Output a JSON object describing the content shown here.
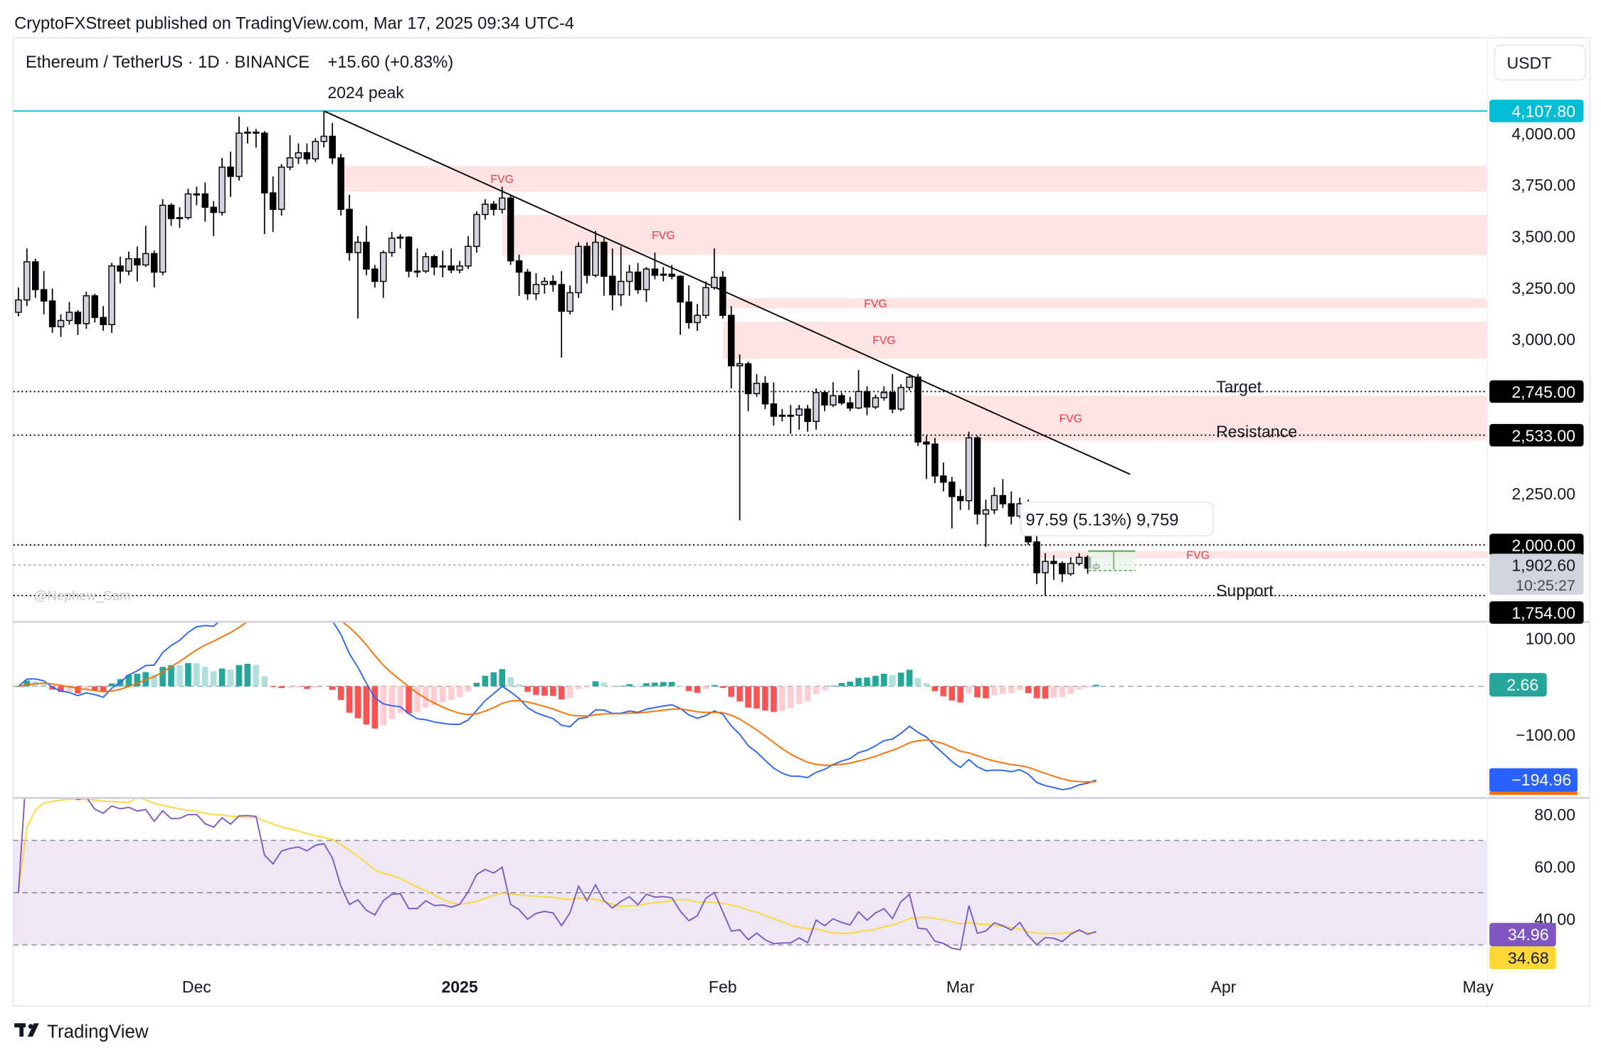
{
  "publish_line": "CryptoFXStreet published on TradingView.com, Mar 17, 2025 09:34 UTC-4",
  "legend": {
    "symbol": "Ethereum / TetherUS · 1D · BINANCE",
    "change": "+15.60 (+0.83%)"
  },
  "currency_button": "USDT",
  "watermark": "@Nephew_Sam",
  "footer_logo": "TradingView",
  "annotations": {
    "peak": "2024 peak",
    "target": "Target",
    "resistance": "Resistance",
    "support": "Support",
    "fvg": "FVG",
    "measure_tooltip": "97.59 (5.13%) 9,759"
  },
  "colors": {
    "up_fill": "#d1d4dc",
    "down_fill": "#000000",
    "fvg_zone": "#ffe4e4",
    "fvg_text": "#f23645",
    "peak_line": "#00bcd4",
    "macd": "#2962ff",
    "signal": "#ff6d00",
    "hist_up_strong": "#26a69a",
    "hist_up_weak": "#b2dfdb",
    "hist_down_strong": "#ff5252",
    "hist_down_weak": "#ffcdd2",
    "rsi": "#7e57c2",
    "rsi_ma": "#fdd835",
    "rsi_band": "#ede7f6"
  },
  "chart_data": [
    {
      "type": "candlestick",
      "title": "Ethereum / TetherUS · 1D · BINANCE",
      "start_date": "2024-11-10",
      "interval": "1D",
      "columns": [
        "open",
        "high",
        "low",
        "close"
      ],
      "ohlc": [
        [
          3130,
          3250,
          3110,
          3190
        ],
        [
          3190,
          3440,
          3160,
          3375
        ],
        [
          3375,
          3390,
          3200,
          3240
        ],
        [
          3240,
          3330,
          3120,
          3185
        ],
        [
          3185,
          3245,
          3030,
          3060
        ],
        [
          3060,
          3120,
          3010,
          3090
        ],
        [
          3090,
          3180,
          3070,
          3130
        ],
        [
          3130,
          3140,
          3020,
          3075
        ],
        [
          3075,
          3230,
          3050,
          3210
        ],
        [
          3210,
          3220,
          3080,
          3105
        ],
        [
          3105,
          3160,
          3040,
          3070
        ],
        [
          3070,
          3370,
          3030,
          3355
        ],
        [
          3355,
          3400,
          3270,
          3330
        ],
        [
          3330,
          3425,
          3310,
          3390
        ],
        [
          3390,
          3450,
          3280,
          3360
        ],
        [
          3360,
          3550,
          3350,
          3415
        ],
        [
          3415,
          3430,
          3250,
          3325
        ],
        [
          3325,
          3680,
          3310,
          3650
        ],
        [
          3650,
          3660,
          3550,
          3585
        ],
        [
          3585,
          3640,
          3540,
          3590
        ],
        [
          3590,
          3730,
          3580,
          3705
        ],
        [
          3705,
          3740,
          3650,
          3705
        ],
        [
          3705,
          3760,
          3570,
          3640
        ],
        [
          3640,
          3670,
          3500,
          3615
        ],
        [
          3615,
          3880,
          3600,
          3835
        ],
        [
          3835,
          3910,
          3690,
          3790
        ],
        [
          3790,
          4080,
          3770,
          4000
        ],
        [
          4000,
          4030,
          3950,
          4005
        ],
        [
          4005,
          4020,
          3930,
          4000
        ],
        [
          4000,
          4010,
          3510,
          3710
        ],
        [
          3710,
          3790,
          3520,
          3630
        ],
        [
          3630,
          3850,
          3600,
          3835
        ],
        [
          3835,
          3990,
          3820,
          3880
        ],
        [
          3880,
          3950,
          3850,
          3905
        ],
        [
          3905,
          3950,
          3850,
          3875
        ],
        [
          3875,
          3975,
          3860,
          3960
        ],
        [
          3960,
          4107.8,
          3930,
          3985
        ],
        [
          3985,
          4050,
          3850,
          3880
        ],
        [
          3880,
          3900,
          3600,
          3630
        ],
        [
          3630,
          3700,
          3380,
          3420
        ],
        [
          3420,
          3500,
          3100,
          3470
        ],
        [
          3470,
          3550,
          3310,
          3340
        ],
        [
          3340,
          3360,
          3250,
          3280
        ],
        [
          3280,
          3430,
          3200,
          3420
        ],
        [
          3420,
          3520,
          3400,
          3490
        ],
        [
          3490,
          3510,
          3440,
          3495
        ],
        [
          3495,
          3500,
          3300,
          3330
        ],
        [
          3330,
          3440,
          3300,
          3330
        ],
        [
          3330,
          3420,
          3320,
          3400
        ],
        [
          3400,
          3410,
          3310,
          3350
        ],
        [
          3350,
          3430,
          3300,
          3355
        ],
        [
          3355,
          3440,
          3320,
          3335
        ],
        [
          3335,
          3380,
          3320,
          3355
        ],
        [
          3355,
          3500,
          3340,
          3450
        ],
        [
          3450,
          3620,
          3420,
          3605
        ],
        [
          3605,
          3680,
          3580,
          3655
        ],
        [
          3655,
          3670,
          3600,
          3630
        ],
        [
          3630,
          3740,
          3610,
          3685
        ],
        [
          3685,
          3700,
          3360,
          3380
        ],
        [
          3380,
          3410,
          3210,
          3325
        ],
        [
          3325,
          3340,
          3190,
          3220
        ],
        [
          3220,
          3320,
          3190,
          3265
        ],
        [
          3265,
          3300,
          3220,
          3280
        ],
        [
          3280,
          3310,
          3230,
          3265
        ],
        [
          3265,
          3330,
          2910,
          3135
        ],
        [
          3135,
          3260,
          3120,
          3225
        ],
        [
          3225,
          3470,
          3200,
          3450
        ],
        [
          3450,
          3470,
          3270,
          3310
        ],
        [
          3310,
          3525,
          3300,
          3470
        ],
        [
          3470,
          3490,
          3210,
          3305
        ],
        [
          3305,
          3440,
          3140,
          3215
        ],
        [
          3215,
          3450,
          3160,
          3280
        ],
        [
          3280,
          3360,
          3210,
          3325
        ],
        [
          3325,
          3370,
          3220,
          3240
        ],
        [
          3240,
          3350,
          3180,
          3340
        ],
        [
          3340,
          3420,
          3290,
          3310
        ],
        [
          3310,
          3350,
          3280,
          3315
        ],
        [
          3315,
          3360,
          3290,
          3305
        ],
        [
          3305,
          3310,
          3020,
          3180
        ],
        [
          3180,
          3260,
          3050,
          3080
        ],
        [
          3080,
          3170,
          3040,
          3115
        ],
        [
          3115,
          3280,
          3100,
          3250
        ],
        [
          3250,
          3440,
          3240,
          3300
        ],
        [
          3300,
          3330,
          3100,
          3115
        ],
        [
          3115,
          3160,
          2760,
          2870
        ],
        [
          2870,
          2925,
          2120,
          2880
        ],
        [
          2880,
          2890,
          2650,
          2735
        ],
        [
          2735,
          2830,
          2720,
          2785
        ],
        [
          2785,
          2820,
          2660,
          2685
        ],
        [
          2685,
          2790,
          2580,
          2625
        ],
        [
          2625,
          2660,
          2600,
          2630
        ],
        [
          2630,
          2680,
          2540,
          2630
        ],
        [
          2630,
          2680,
          2560,
          2660
        ],
        [
          2660,
          2680,
          2550,
          2600
        ],
        [
          2600,
          2760,
          2560,
          2740
        ],
        [
          2740,
          2750,
          2650,
          2680
        ],
        [
          2680,
          2790,
          2670,
          2725
        ],
        [
          2725,
          2740,
          2680,
          2690
        ],
        [
          2690,
          2720,
          2650,
          2665
        ],
        [
          2665,
          2850,
          2660,
          2745
        ],
        [
          2745,
          2770,
          2630,
          2670
        ],
        [
          2670,
          2730,
          2660,
          2715
        ],
        [
          2715,
          2770,
          2700,
          2740
        ],
        [
          2740,
          2830,
          2640,
          2660
        ],
        [
          2660,
          2780,
          2650,
          2765
        ],
        [
          2765,
          2830,
          2750,
          2815
        ],
        [
          2815,
          2830,
          2480,
          2500
        ],
        [
          2500,
          2530,
          2320,
          2490
        ],
        [
          2490,
          2520,
          2300,
          2335
        ],
        [
          2335,
          2400,
          2260,
          2305
        ],
        [
          2305,
          2330,
          2080,
          2235
        ],
        [
          2235,
          2270,
          2170,
          2215
        ],
        [
          2215,
          2550,
          2170,
          2520
        ],
        [
          2520,
          2530,
          2100,
          2150
        ],
        [
          2150,
          2220,
          1990,
          2170
        ],
        [
          2170,
          2280,
          2150,
          2240
        ],
        [
          2240,
          2320,
          2180,
          2200
        ],
        [
          2200,
          2260,
          2100,
          2140
        ],
        [
          2140,
          2230,
          2130,
          2200
        ],
        [
          2200,
          2220,
          2000,
          2015
        ],
        [
          2015,
          2140,
          1810,
          1865
        ],
        [
          1865,
          1960,
          1754,
          1920
        ],
        [
          1920,
          1950,
          1830,
          1910
        ],
        [
          1910,
          1920,
          1820,
          1860
        ],
        [
          1860,
          1940,
          1850,
          1910
        ],
        [
          1910,
          1960,
          1900,
          1940
        ],
        [
          1940,
          1950,
          1860,
          1887
        ],
        [
          1887,
          1915,
          1880,
          1902.6
        ]
      ],
      "ylim": [
        1700,
        4200
      ],
      "price_ticks": [
        {
          "value": 4000,
          "label": "4,000.00"
        },
        {
          "value": 3750,
          "label": "3,750.00"
        },
        {
          "value": 3500,
          "label": "3,500.00"
        },
        {
          "value": 3250,
          "label": "3,250.00"
        },
        {
          "value": 3000,
          "label": "3,000.00"
        },
        {
          "value": 2250,
          "label": "2,250.00"
        }
      ],
      "x_ticks": [
        {
          "date": "2024-12-01",
          "label": "Dec",
          "bold": false
        },
        {
          "date": "2025-01-01",
          "label": "2025",
          "bold": true
        },
        {
          "date": "2025-02-01",
          "label": "Feb",
          "bold": false
        },
        {
          "date": "2025-03-01",
          "label": "Mar",
          "bold": false
        },
        {
          "date": "2025-04-01",
          "label": "Apr",
          "bold": false
        },
        {
          "date": "2025-05-01",
          "label": "May",
          "bold": false
        }
      ],
      "levels": [
        {
          "name": "peak",
          "value": 4107.8,
          "label": "4,107.80",
          "style": "solid",
          "box": "#00bcd4"
        },
        {
          "name": "target",
          "value": 2745,
          "label": "2,745.00",
          "style": "dotted",
          "box": "#000000"
        },
        {
          "name": "resistance",
          "value": 2533,
          "label": "2,533.00",
          "style": "dotted",
          "box": "#000000"
        },
        {
          "name": "round",
          "value": 2000,
          "label": "2,000.00",
          "style": "dotted",
          "box": "#000000"
        },
        {
          "name": "support",
          "value": 1754,
          "label": "1,754.00",
          "style": "dotted",
          "box": "#000000"
        }
      ],
      "last_price": {
        "value": 1902.6,
        "label": "1,902.60",
        "countdown": "10:25:27"
      },
      "fvg_zones": [
        {
          "from": "2024-12-18",
          "top": 3841,
          "bottom": 3716,
          "label_date": "2025-01-06"
        },
        {
          "from": "2025-01-06",
          "top": 3602,
          "bottom": 3408,
          "label_date": "2025-01-25"
        },
        {
          "from": "2025-02-01",
          "top": 3199,
          "bottom": 3149,
          "label_date": "2025-02-19"
        },
        {
          "from": "2025-02-01",
          "top": 3085,
          "bottom": 2905,
          "label_date": "2025-02-20"
        },
        {
          "from": "2025-02-24",
          "top": 2726,
          "bottom": 2507,
          "label_date": "2025-03-14"
        },
        {
          "from": "2025-03-10",
          "top": 1970,
          "bottom": 1935,
          "label_date": "2025-03-29"
        }
      ],
      "trendline": [
        {
          "date": "2024-12-16",
          "value": 4107.8
        },
        {
          "date": "2025-03-21",
          "value": 2343
        }
      ]
    },
    {
      "type": "line",
      "indicator": "MACD",
      "params": {
        "fast": 12,
        "slow": 26,
        "signal": 9
      },
      "ticks": [
        {
          "value": 100,
          "label": "100.00"
        },
        {
          "value": -100,
          "label": "−100.00"
        }
      ],
      "readouts": {
        "histogram": "2.66",
        "macd": "−194.96"
      }
    },
    {
      "type": "line",
      "indicator": "RSI",
      "params": {
        "length": 14,
        "ma_length": 14
      },
      "band": [
        30,
        70
      ],
      "mid": 50,
      "ticks": [
        {
          "value": 80,
          "label": "80.00"
        },
        {
          "value": 60,
          "label": "60.00"
        },
        {
          "value": 40,
          "label": "40.00"
        }
      ],
      "readouts": {
        "rsi": "34.96",
        "rsi_ma": "34.68"
      }
    }
  ]
}
